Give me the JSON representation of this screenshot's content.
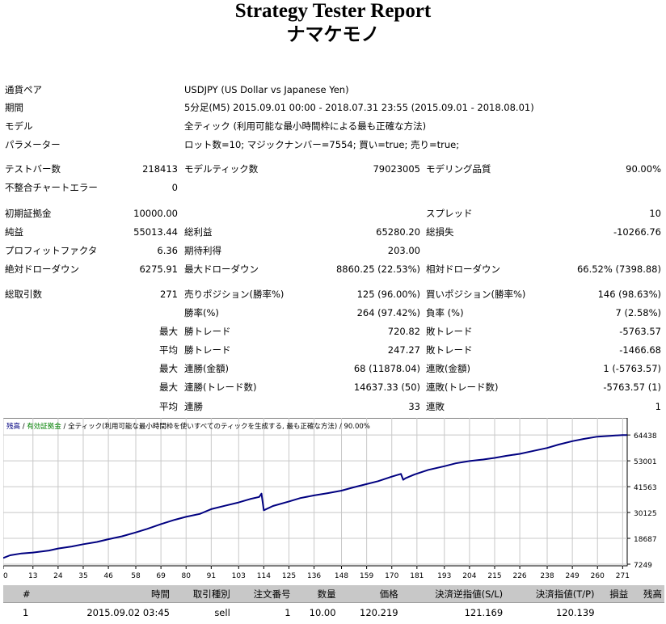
{
  "report": {
    "title": "Strategy Tester Report",
    "ea_name": "ナマケモノ"
  },
  "info": {
    "pair_label": "通貨ペア",
    "pair_value": "USDJPY (US Dollar vs Japanese Yen)",
    "period_label": "期間",
    "period_value": "5分足(M5) 2015.09.01 00:00 - 2018.07.31 23:55 (2015.09.01 - 2018.08.01)",
    "model_label": "モデル",
    "model_value": "全ティック (利用可能な最小時間枠による最も正確な方法)",
    "params_label": "パラメーター",
    "params_value": "ロット数=10; マジックナンバー=7554; 買い=true; 売り=true;"
  },
  "stats": {
    "bars_label": "テストバー数",
    "bars_value": "218413",
    "ticks_label": "モデルティック数",
    "ticks_value": "79023005",
    "quality_label": "モデリング品質",
    "quality_value": "90.00%",
    "mismatch_label": "不整合チャートエラー",
    "mismatch_value": "0",
    "deposit_label": "初期証拠金",
    "deposit_value": "10000.00",
    "spread_label": "スプレッド",
    "spread_value": "10",
    "net_label": "純益",
    "net_value": "55013.44",
    "gross_profit_label": "総利益",
    "gross_profit_value": "65280.20",
    "gross_loss_label": "総損失",
    "gross_loss_value": "-10266.76",
    "pf_label": "プロフィットファクタ",
    "pf_value": "6.36",
    "payoff_label": "期待利得",
    "payoff_value": "203.00",
    "abs_dd_label": "絶対ドローダウン",
    "abs_dd_value": "6275.91",
    "max_dd_label": "最大ドローダウン",
    "max_dd_value": "8860.25 (22.53%)",
    "rel_dd_label": "相対ドローダウン",
    "rel_dd_value": "66.52% (7398.88)",
    "total_trades_label": "総取引数",
    "total_trades_value": "271",
    "short_label": "売りポジション(勝率%)",
    "short_value": "125 (96.00%)",
    "long_label": "買いポジション(勝率%)",
    "long_value": "146 (98.63%)",
    "win_rate_label": "勝率(%)",
    "win_rate_value": "264 (97.42%)",
    "loss_rate_label": "負率 (%)",
    "loss_rate_value": "7 (2.58%)",
    "max_label": "最大",
    "avg_label": "平均",
    "win_trade_label": "勝トレード",
    "max_win_value": "720.82",
    "loss_trade_label": "敗トレード",
    "max_loss_value": "-5763.57",
    "avg_win_value": "247.27",
    "avg_loss_value": "-1466.68",
    "cons_wins_money_label": "連勝(金額)",
    "cons_wins_money_value": "68 (11878.04)",
    "cons_losses_money_label": "連敗(金額)",
    "cons_losses_money_value": "1 (-5763.57)",
    "cons_wins_trades_label": "連勝(トレード数)",
    "cons_wins_trades_value": "14637.33 (50)",
    "cons_losses_trades_label": "連敗(トレード数)",
    "cons_losses_trades_value": "-5763.57 (1)",
    "avg_cons_win_label": "連勝",
    "avg_cons_win_value": "33",
    "avg_cons_loss_label": "連敗",
    "avg_cons_loss_value": "1"
  },
  "chart_caption": {
    "balance": "残高",
    "sep1": " / ",
    "equity": "有効証拠金",
    "sep2": " / ",
    "rest": "全ティック(利用可能な最小時間枠を使いすべてのティックを生成する, 最も正確な方法) / 90.00%"
  },
  "chart_data": {
    "type": "line",
    "y_ticks": [
      64438,
      53001,
      41563,
      30125,
      18687,
      7249
    ],
    "x_ticks": [
      0,
      13,
      24,
      35,
      46,
      58,
      69,
      80,
      91,
      103,
      114,
      125,
      136,
      148,
      159,
      170,
      181,
      193,
      204,
      215,
      226,
      238,
      249,
      260,
      271
    ],
    "ylim": [
      7249,
      67000
    ],
    "xlim": [
      0,
      273
    ],
    "series": [
      {
        "color": "#000080",
        "x": [
          0,
          3,
          8,
          13,
          20,
          24,
          30,
          35,
          41,
          46,
          52,
          58,
          63,
          69,
          75,
          80,
          86,
          91,
          97,
          103,
          108,
          112,
          113,
          114,
          118,
          125,
          130,
          136,
          142,
          148,
          153,
          159,
          164,
          170,
          174,
          175,
          176,
          180,
          186,
          193,
          198,
          204,
          210,
          215,
          220,
          226,
          232,
          238,
          243,
          249,
          254,
          260,
          266,
          271,
          273
        ],
        "y": [
          10000,
          11200,
          12000,
          12400,
          13300,
          14200,
          15100,
          16100,
          17100,
          18300,
          19600,
          21300,
          22900,
          25000,
          26900,
          28200,
          29500,
          31600,
          33100,
          34600,
          36100,
          37000,
          38500,
          31100,
          33000,
          35000,
          36500,
          37700,
          38700,
          39800,
          41200,
          42700,
          44000,
          46000,
          47200,
          44600,
          45300,
          47000,
          49000,
          50600,
          51900,
          52900,
          53600,
          54300,
          55200,
          56100,
          57400,
          58700,
          60200,
          61700,
          62700,
          63700,
          64100,
          64438,
          64438
        ]
      }
    ]
  },
  "trades_table": {
    "headers": [
      "#",
      "時間",
      "取引種別",
      "注文番号",
      "数量",
      "価格",
      "決済逆指値(S/L)",
      "決済指値(T/P)",
      "損益",
      "残高"
    ],
    "rows": [
      [
        "1",
        "2015.09.02 03:45",
        "sell",
        "1",
        "10.00",
        "120.219",
        "121.169",
        "120.139",
        "",
        ""
      ]
    ]
  }
}
